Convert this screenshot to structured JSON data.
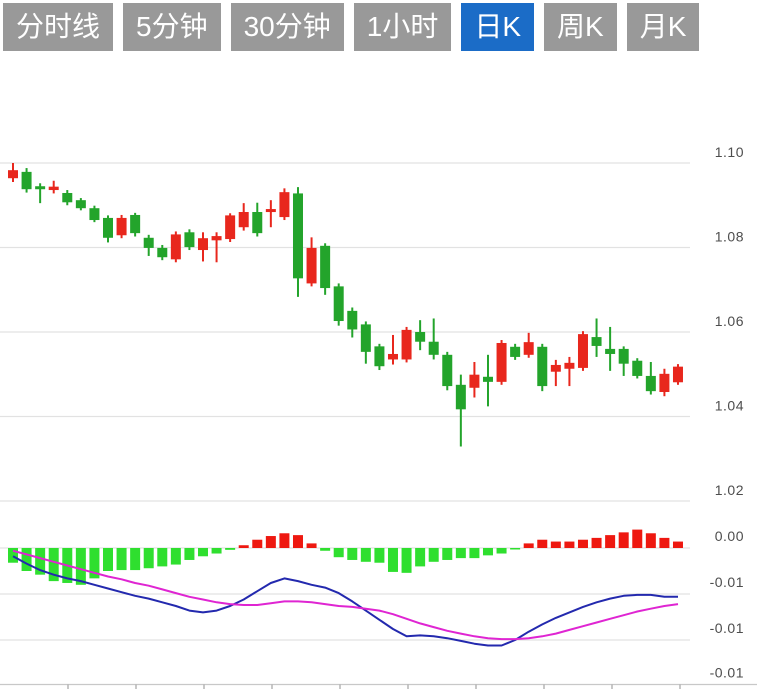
{
  "toolbar": {
    "tabs": [
      {
        "label": "分时线",
        "active": false
      },
      {
        "label": "5分钟",
        "active": false
      },
      {
        "label": "30分钟",
        "active": false
      },
      {
        "label": "1小时",
        "active": false
      },
      {
        "label": "日K",
        "active": true
      },
      {
        "label": "周K",
        "active": false
      },
      {
        "label": "月K",
        "active": false
      }
    ]
  },
  "colors": {
    "up": "#e8271d",
    "down": "#23a42b",
    "hist_up": "#ee1810",
    "hist_down": "#2fdf2f",
    "dif_line": "#2329ae",
    "dea_line": "#df25d2",
    "tab_bg": "#999999",
    "tab_active_bg": "#1b6cc7",
    "tab_text": "#ffffff",
    "grid": "#e2e2e2",
    "axis": "#c8c8c8",
    "tick": "#aaaaaa",
    "label": "#4d4d4d",
    "background": "#ffffff"
  },
  "chart_data": {
    "type": "candlestick",
    "title": "",
    "panes": [
      "price",
      "macd"
    ],
    "legend_position": "none",
    "grid": true,
    "y_axis_price": {
      "tick_labels": [
        "1.10",
        "1.08",
        "1.06",
        "1.04",
        "1.02"
      ],
      "tick_values": [
        1.1,
        1.08,
        1.06,
        1.04,
        1.02
      ],
      "range": [
        1.015,
        1.105
      ]
    },
    "y_axis_macd": {
      "tick_labels": [
        "0.00",
        "-0.01",
        "-0.01",
        "-0.01"
      ],
      "tick_values": [
        0,
        -0.005,
        -0.01,
        -0.015
      ],
      "range": [
        -0.015,
        0.0025
      ]
    },
    "candles_ohlc": [
      [
        1.0964,
        1.1,
        1.0955,
        1.0983
      ],
      [
        1.0979,
        1.0988,
        1.093,
        1.0938
      ],
      [
        1.0945,
        1.0952,
        1.0905,
        1.0938
      ],
      [
        1.0936,
        1.0958,
        1.0928,
        1.0944
      ],
      [
        1.0929,
        1.0936,
        1.09,
        1.0907
      ],
      [
        1.0912,
        1.0917,
        1.0888,
        1.0893
      ],
      [
        1.0893,
        1.0899,
        1.086,
        1.0865
      ],
      [
        1.087,
        1.0876,
        1.0812,
        1.0823
      ],
      [
        1.0829,
        1.0877,
        1.0822,
        1.087
      ],
      [
        1.0877,
        1.0882,
        1.0826,
        1.0834
      ],
      [
        1.0823,
        1.083,
        1.078,
        1.0799
      ],
      [
        1.0799,
        1.0806,
        1.077,
        1.0777
      ],
      [
        1.0772,
        1.0838,
        1.0765,
        1.0831
      ],
      [
        1.0836,
        1.0843,
        1.0794,
        1.0801
      ],
      [
        1.0794,
        1.0836,
        1.0767,
        1.0822
      ],
      [
        1.0817,
        1.0836,
        1.0765,
        1.0827
      ],
      [
        1.082,
        1.0881,
        1.0813,
        1.0876
      ],
      [
        1.0848,
        1.0905,
        1.084,
        1.0884
      ],
      [
        1.0884,
        1.0906,
        1.0826,
        1.0834
      ],
      [
        1.0884,
        1.0912,
        1.0848,
        1.0891
      ],
      [
        1.0872,
        1.094,
        1.0865,
        1.0931
      ],
      [
        1.0928,
        1.0943,
        1.0683,
        1.0727
      ],
      [
        1.0715,
        1.0824,
        1.0708,
        1.0799
      ],
      [
        1.0804,
        1.081,
        1.0688,
        1.0704
      ],
      [
        1.0708,
        1.0715,
        1.0615,
        1.0626
      ],
      [
        1.065,
        1.0658,
        1.0587,
        1.0606
      ],
      [
        1.0618,
        1.0625,
        1.0525,
        1.0553
      ],
      [
        1.0566,
        1.0572,
        1.051,
        1.0519
      ],
      [
        1.0535,
        1.0593,
        1.0523,
        1.0548
      ],
      [
        1.0535,
        1.0612,
        1.0528,
        1.0605
      ],
      [
        1.06,
        1.0628,
        1.0557,
        1.0577
      ],
      [
        1.0577,
        1.0632,
        1.0535,
        1.0546
      ],
      [
        1.0546,
        1.0553,
        1.0462,
        1.0472
      ],
      [
        1.0475,
        1.0499,
        1.0329,
        1.0417
      ],
      [
        1.0468,
        1.0529,
        1.0445,
        1.0499
      ],
      [
        1.0494,
        1.0546,
        1.0424,
        1.0482
      ],
      [
        1.0482,
        1.0581,
        1.0475,
        1.0574
      ],
      [
        1.0565,
        1.0572,
        1.0534,
        1.0541
      ],
      [
        1.0546,
        1.0598,
        1.0539,
        1.0576
      ],
      [
        1.0565,
        1.0572,
        1.046,
        1.0472
      ],
      [
        1.0506,
        1.0534,
        1.0472,
        1.0522
      ],
      [
        1.0513,
        1.0541,
        1.0472,
        1.0527
      ],
      [
        1.0515,
        1.0602,
        1.0508,
        1.0595
      ],
      [
        1.0588,
        1.0632,
        1.0541,
        1.0567
      ],
      [
        1.056,
        1.0612,
        1.0508,
        1.0548
      ],
      [
        1.056,
        1.0566,
        1.0496,
        1.0525
      ],
      [
        1.0532,
        1.0538,
        1.049,
        1.0496
      ],
      [
        1.0496,
        1.0529,
        1.0452,
        1.046
      ],
      [
        1.0458,
        1.0513,
        1.0448,
        1.0501
      ],
      [
        1.0481,
        1.0524,
        1.0475,
        1.0518
      ]
    ],
    "macd": {
      "histogram": [
        -0.0016,
        -0.0025,
        -0.0029,
        -0.0036,
        -0.0038,
        -0.004,
        -0.0033,
        -0.0025,
        -0.0024,
        -0.0024,
        -0.0022,
        -0.002,
        -0.0018,
        -0.0013,
        -0.0009,
        -0.0006,
        -0.0002,
        0.0003,
        0.0009,
        0.0013,
        0.0016,
        0.0014,
        0.0005,
        -0.0003,
        -0.001,
        -0.0013,
        -0.0015,
        -0.0016,
        -0.0026,
        -0.0027,
        -0.002,
        -0.0015,
        -0.0013,
        -0.0011,
        -0.0011,
        -0.0008,
        -0.0006,
        -0.0001,
        0.0005,
        0.0009,
        0.0007,
        0.0007,
        0.0009,
        0.0011,
        0.0014,
        0.0017,
        0.002,
        0.0016,
        0.0011,
        0.0007
      ],
      "dif": [
        -0.0009,
        -0.0017,
        -0.0024,
        -0.0029,
        -0.0033,
        -0.0036,
        -0.004,
        -0.0044,
        -0.0048,
        -0.0052,
        -0.0055,
        -0.0059,
        -0.0063,
        -0.0068,
        -0.007,
        -0.0068,
        -0.0063,
        -0.0056,
        -0.0047,
        -0.0038,
        -0.0033,
        -0.0036,
        -0.004,
        -0.0043,
        -0.0049,
        -0.0058,
        -0.0068,
        -0.0078,
        -0.0088,
        -0.0096,
        -0.0095,
        -0.0096,
        -0.0098,
        -0.0101,
        -0.0104,
        -0.0106,
        -0.0106,
        -0.01,
        -0.0091,
        -0.0083,
        -0.0076,
        -0.007,
        -0.0064,
        -0.0059,
        -0.0055,
        -0.0052,
        -0.0051,
        -0.0051,
        -0.0053,
        -0.0053
      ],
      "dea": [
        -0.0003,
        -0.0007,
        -0.0011,
        -0.0015,
        -0.0019,
        -0.0023,
        -0.0027,
        -0.0031,
        -0.0034,
        -0.0038,
        -0.0041,
        -0.0045,
        -0.0049,
        -0.0053,
        -0.0056,
        -0.0059,
        -0.0061,
        -0.0062,
        -0.0062,
        -0.006,
        -0.0058,
        -0.0058,
        -0.0059,
        -0.0061,
        -0.0063,
        -0.0064,
        -0.0066,
        -0.0068,
        -0.0072,
        -0.0077,
        -0.0082,
        -0.0086,
        -0.009,
        -0.0093,
        -0.0096,
        -0.0098,
        -0.0099,
        -0.0099,
        -0.0098,
        -0.0096,
        -0.0093,
        -0.0089,
        -0.0085,
        -0.0081,
        -0.0077,
        -0.0073,
        -0.0069,
        -0.0066,
        -0.0063,
        -0.0061
      ]
    }
  }
}
